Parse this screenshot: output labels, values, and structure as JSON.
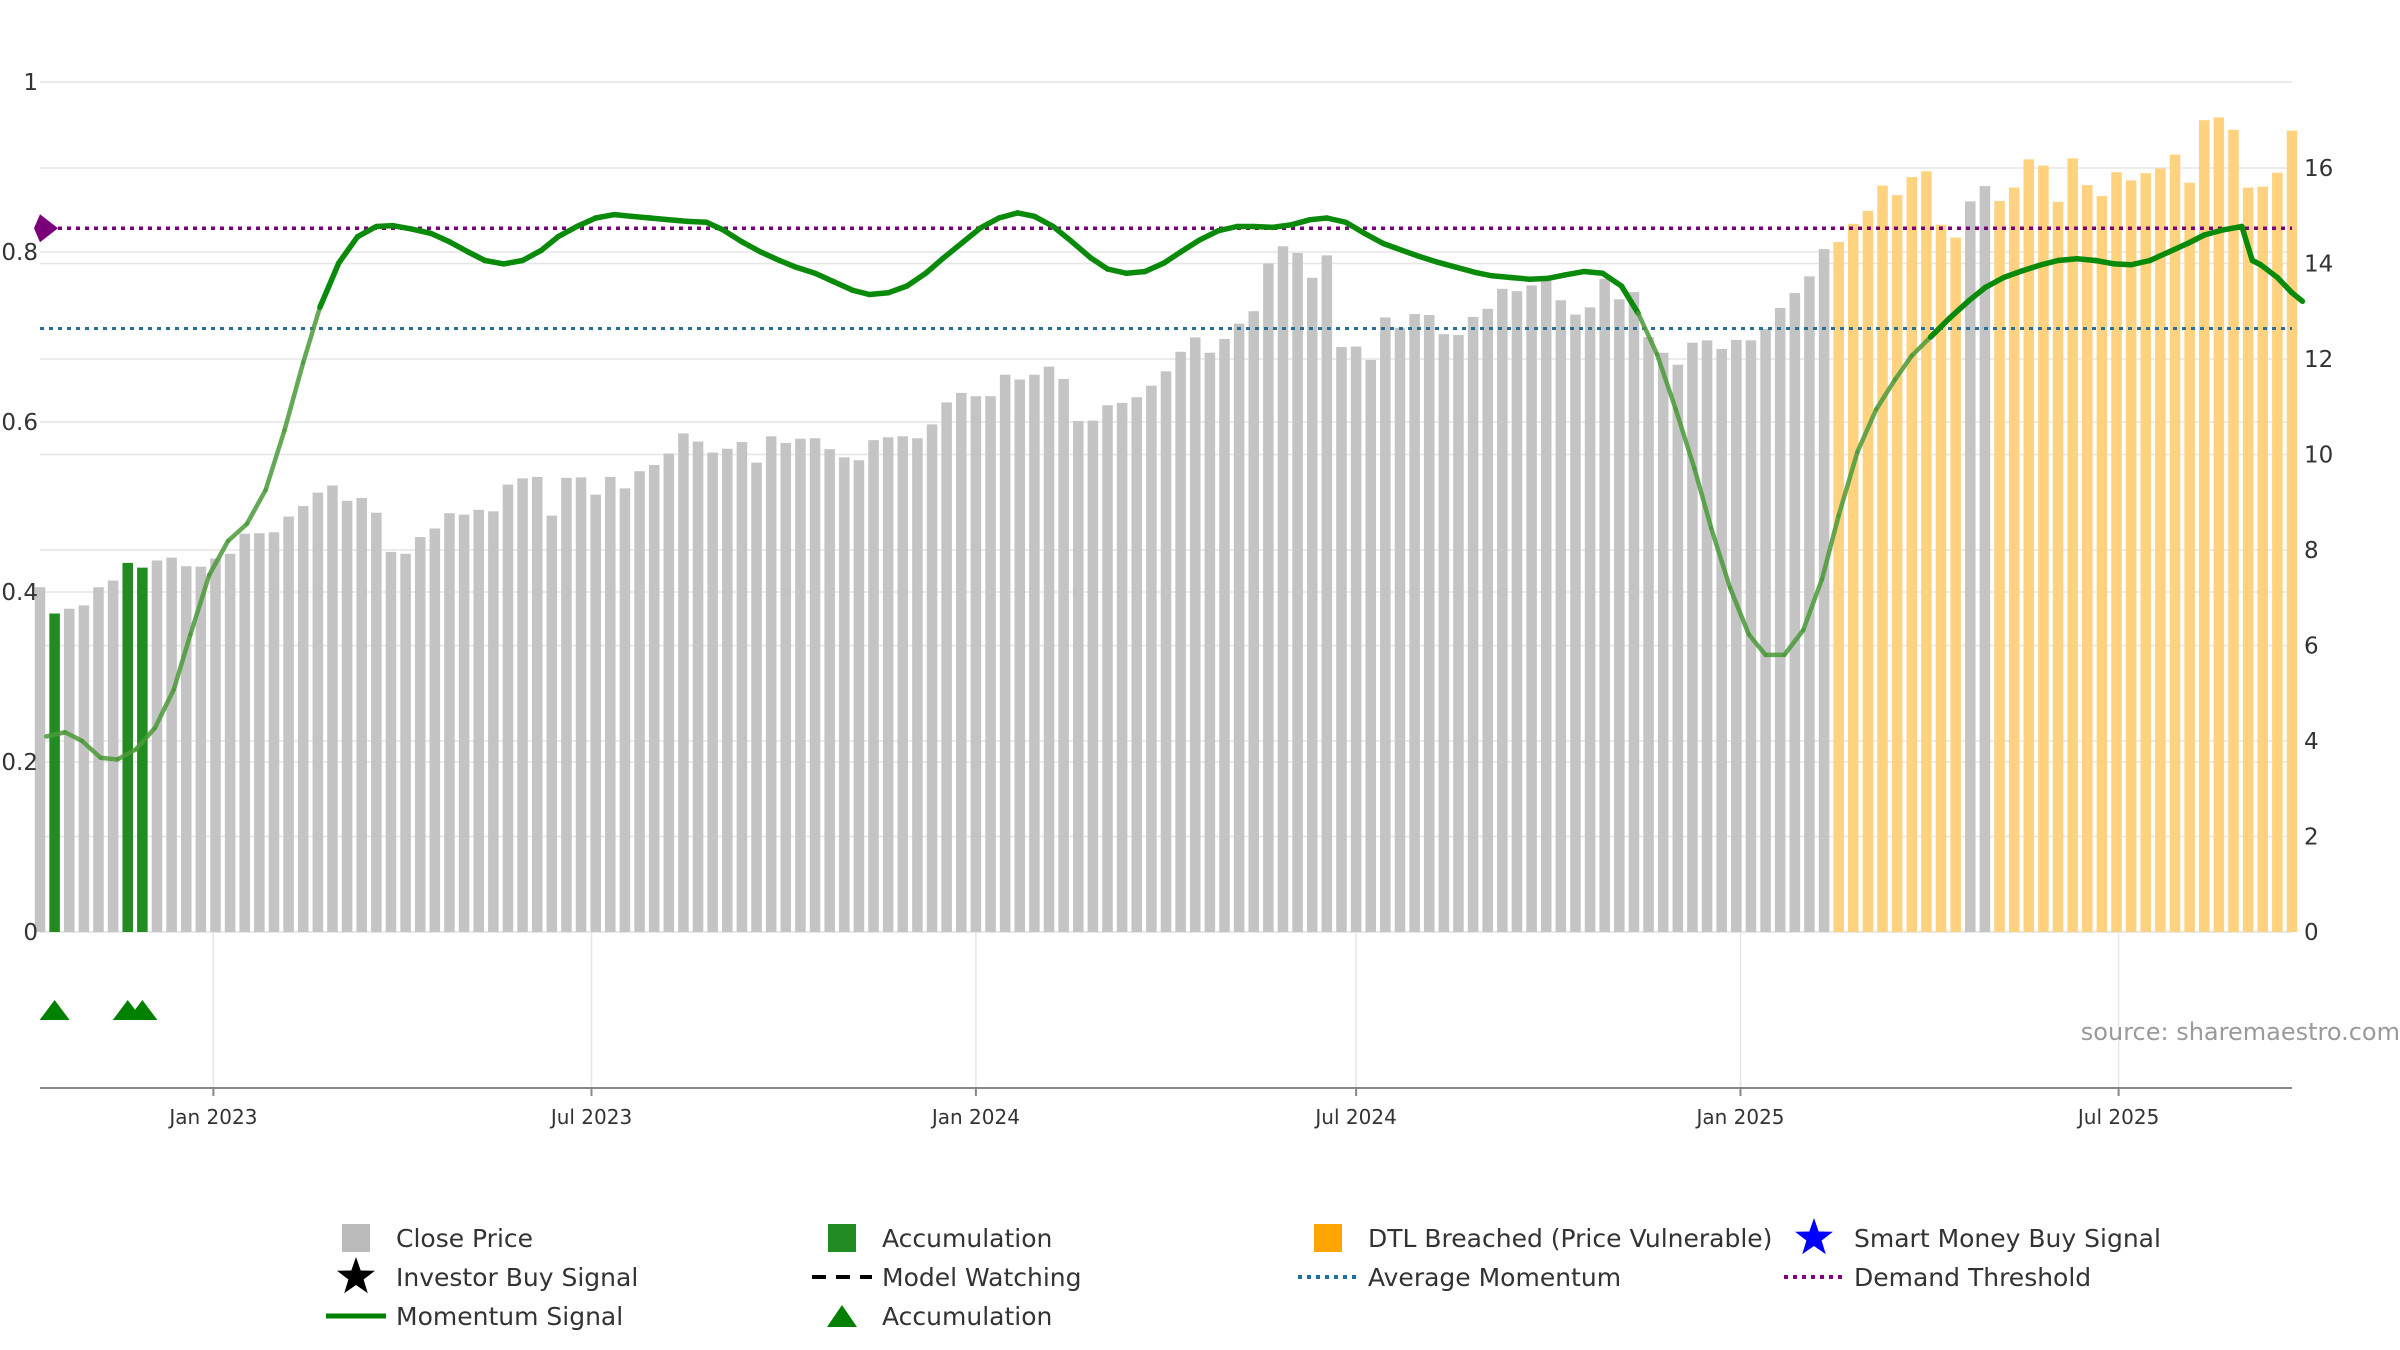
{
  "chart_data": {
    "type": "bar",
    "source_label": "source: sharemaestro.com",
    "left_axis": {
      "ylim": [
        0,
        1
      ],
      "ticks": [
        "0",
        "0.2",
        "0.4",
        "0.6",
        "0.8",
        "1"
      ]
    },
    "right_axis": {
      "ylim": [
        0,
        17.8
      ],
      "ticks": [
        "0",
        "2",
        "4",
        "6",
        "8",
        "10",
        "12",
        "14",
        "16"
      ]
    },
    "x_axis": {
      "start": "2022-10-10",
      "end": "2025-09-22",
      "ticks": [
        {
          "label": "Jan 2023",
          "date": "2023-01-01"
        },
        {
          "label": "Jul 2023",
          "date": "2023-07-01"
        },
        {
          "label": "Jan 2024",
          "date": "2024-01-01"
        },
        {
          "label": "Jul 2024",
          "date": "2024-07-01"
        },
        {
          "label": "Jan 2025",
          "date": "2025-01-01"
        },
        {
          "label": "Jul 2025",
          "date": "2025-07-01"
        }
      ]
    },
    "price_series": {
      "name": "Close Price",
      "start": "2022-10-10",
      "interval_days": 7,
      "values": [
        7.22,
        6.67,
        6.77,
        6.84,
        7.22,
        7.36,
        7.73,
        7.63,
        7.78,
        7.84,
        7.66,
        7.65,
        7.82,
        7.92,
        8.34,
        8.35,
        8.37,
        8.7,
        8.92,
        9.2,
        9.35,
        9.03,
        9.09,
        8.78,
        7.96,
        7.92,
        8.27,
        8.45,
        8.77,
        8.74,
        8.84,
        8.81,
        9.37,
        9.5,
        9.53,
        8.72,
        9.51,
        9.52,
        9.16,
        9.53,
        9.29,
        9.65,
        9.78,
        10.02,
        10.44,
        10.27,
        10.04,
        10.12,
        10.26,
        9.83,
        10.38,
        10.24,
        10.33,
        10.34,
        10.11,
        9.94,
        9.88,
        10.3,
        10.36,
        10.38,
        10.34,
        10.63,
        11.09,
        11.29,
        11.22,
        11.22,
        11.67,
        11.57,
        11.67,
        11.84,
        11.58,
        10.7,
        10.71,
        11.03,
        11.08,
        11.2,
        11.44,
        11.74,
        12.15,
        12.45,
        12.13,
        12.42,
        12.74,
        13.0,
        14.0,
        14.36,
        14.22,
        13.7,
        14.17,
        12.25,
        12.26,
        11.98,
        12.87,
        12.65,
        12.94,
        12.92,
        12.52,
        12.5,
        12.88,
        13.05,
        13.47,
        13.42,
        13.54,
        13.71,
        13.23,
        12.93,
        13.08,
        13.68,
        13.25,
        13.4,
        12.46,
        12.13,
        11.88,
        12.34,
        12.39,
        12.21,
        12.4,
        12.39,
        12.63,
        13.07,
        13.38,
        13.73,
        14.3,
        14.45,
        14.83,
        15.1,
        15.63,
        15.43,
        15.81,
        15.93,
        14.81,
        14.54,
        15.3,
        15.62,
        15.31,
        15.59,
        16.18,
        16.05,
        15.29,
        16.2,
        15.64,
        15.41,
        15.91,
        15.74,
        15.89,
        15.99,
        16.28,
        15.69,
        17.0,
        17.06,
        16.8,
        15.59,
        15.61,
        15.9,
        16.78
      ]
    },
    "accumulation_bars": [
      "2022-10-17",
      "2022-11-21",
      "2022-11-28"
    ],
    "accumulation_markers": [
      "2022-10-17",
      "2022-11-21",
      "2022-11-28"
    ],
    "dtl_breached": [
      {
        "start": "2025-02-17",
        "end": "2025-04-14"
      },
      {
        "start": "2025-05-05",
        "end": "2025-09-22"
      }
    ],
    "momentum_series": {
      "name": "Momentum Signal",
      "points": [
        [
          "2022-10-13",
          0.23
        ],
        [
          "2022-10-22",
          0.235
        ],
        [
          "2022-10-30",
          0.225
        ],
        [
          "2022-11-08",
          0.205
        ],
        [
          "2022-11-16",
          0.203
        ],
        [
          "2022-11-25",
          0.215
        ],
        [
          "2022-12-04",
          0.24
        ],
        [
          "2022-12-13",
          0.285
        ],
        [
          "2022-12-21",
          0.35
        ],
        [
          "2022-12-30",
          0.42
        ],
        [
          "2023-01-08",
          0.46
        ],
        [
          "2023-01-17",
          0.48
        ],
        [
          "2023-01-26",
          0.52
        ],
        [
          "2023-02-04",
          0.59
        ],
        [
          "2023-02-13",
          0.67
        ],
        [
          "2023-02-21",
          0.735
        ],
        [
          "2023-03-02",
          0.787
        ],
        [
          "2023-03-11",
          0.818
        ],
        [
          "2023-03-20",
          0.83
        ],
        [
          "2023-03-28",
          0.831
        ],
        [
          "2023-04-06",
          0.827
        ],
        [
          "2023-04-15",
          0.822
        ],
        [
          "2023-04-24",
          0.812
        ],
        [
          "2023-05-03",
          0.8
        ],
        [
          "2023-05-11",
          0.79
        ],
        [
          "2023-05-20",
          0.786
        ],
        [
          "2023-05-29",
          0.79
        ],
        [
          "2023-06-07",
          0.802
        ],
        [
          "2023-06-15",
          0.818
        ],
        [
          "2023-06-24",
          0.83
        ],
        [
          "2023-07-03",
          0.84
        ],
        [
          "2023-07-12",
          0.844
        ],
        [
          "2023-07-20",
          0.842
        ],
        [
          "2023-07-29",
          0.84
        ],
        [
          "2023-08-07",
          0.838
        ],
        [
          "2023-08-16",
          0.836
        ],
        [
          "2023-08-25",
          0.835
        ],
        [
          "2023-09-02",
          0.826
        ],
        [
          "2023-09-11",
          0.812
        ],
        [
          "2023-09-20",
          0.8
        ],
        [
          "2023-09-29",
          0.79
        ],
        [
          "2023-10-07",
          0.782
        ],
        [
          "2023-10-16",
          0.775
        ],
        [
          "2023-10-25",
          0.765
        ],
        [
          "2023-11-03",
          0.755
        ],
        [
          "2023-11-11",
          0.75
        ],
        [
          "2023-11-20",
          0.752
        ],
        [
          "2023-11-29",
          0.76
        ],
        [
          "2023-12-08",
          0.775
        ],
        [
          "2023-12-16",
          0.792
        ],
        [
          "2023-12-25",
          0.81
        ],
        [
          "2024-01-03",
          0.828
        ],
        [
          "2024-01-12",
          0.84
        ],
        [
          "2024-01-21",
          0.846
        ],
        [
          "2024-01-29",
          0.842
        ],
        [
          "2024-02-07",
          0.83
        ],
        [
          "2024-02-16",
          0.812
        ],
        [
          "2024-02-25",
          0.793
        ],
        [
          "2024-03-04",
          0.78
        ],
        [
          "2024-03-13",
          0.775
        ],
        [
          "2024-03-22",
          0.777
        ],
        [
          "2024-03-31",
          0.787
        ],
        [
          "2024-04-08",
          0.8
        ],
        [
          "2024-04-17",
          0.814
        ],
        [
          "2024-04-26",
          0.825
        ],
        [
          "2024-05-05",
          0.83
        ],
        [
          "2024-05-13",
          0.83
        ],
        [
          "2024-05-22",
          0.829
        ],
        [
          "2024-05-31",
          0.832
        ],
        [
          "2024-06-09",
          0.838
        ],
        [
          "2024-06-17",
          0.84
        ],
        [
          "2024-06-26",
          0.835
        ],
        [
          "2024-07-05",
          0.822
        ],
        [
          "2024-07-14",
          0.81
        ],
        [
          "2024-07-23",
          0.802
        ],
        [
          "2024-07-31",
          0.795
        ],
        [
          "2024-08-09",
          0.788
        ],
        [
          "2024-08-18",
          0.782
        ],
        [
          "2024-08-27",
          0.776
        ],
        [
          "2024-09-04",
          0.772
        ],
        [
          "2024-09-13",
          0.77
        ],
        [
          "2024-09-22",
          0.768
        ],
        [
          "2024-10-01",
          0.769
        ],
        [
          "2024-10-09",
          0.773
        ],
        [
          "2024-10-18",
          0.777
        ],
        [
          "2024-10-27",
          0.775
        ],
        [
          "2024-11-05",
          0.76
        ],
        [
          "2024-11-13",
          0.728
        ],
        [
          "2024-11-22",
          0.68
        ],
        [
          "2024-12-01",
          0.615
        ],
        [
          "2024-12-10",
          0.545
        ],
        [
          "2024-12-18",
          0.475
        ],
        [
          "2024-12-27",
          0.405
        ],
        [
          "2025-01-05",
          0.35
        ],
        [
          "2025-01-13",
          0.326
        ],
        [
          "2025-01-22",
          0.326
        ],
        [
          "2025-01-31",
          0.355
        ],
        [
          "2025-02-09",
          0.415
        ],
        [
          "2025-02-17",
          0.49
        ],
        [
          "2025-02-26",
          0.565
        ],
        [
          "2025-03-07",
          0.615
        ],
        [
          "2025-03-16",
          0.65
        ],
        [
          "2025-03-24",
          0.678
        ],
        [
          "2025-04-02",
          0.7
        ],
        [
          "2025-04-11",
          0.722
        ],
        [
          "2025-04-20",
          0.742
        ],
        [
          "2025-04-28",
          0.758
        ],
        [
          "2025-05-07",
          0.77
        ],
        [
          "2025-05-16",
          0.778
        ],
        [
          "2025-05-25",
          0.785
        ],
        [
          "2025-06-02",
          0.79
        ],
        [
          "2025-06-11",
          0.792
        ],
        [
          "2025-06-20",
          0.79
        ],
        [
          "2025-06-29",
          0.786
        ],
        [
          "2025-07-07",
          0.785
        ],
        [
          "2025-07-16",
          0.79
        ],
        [
          "2025-07-25",
          0.8
        ],
        [
          "2025-08-03",
          0.81
        ],
        [
          "2025-08-11",
          0.82
        ],
        [
          "2025-08-20",
          0.826
        ],
        [
          "2025-08-29",
          0.83
        ],
        [
          "2025-09-03",
          0.79
        ],
        [
          "2025-09-07",
          0.785
        ],
        [
          "2025-09-15",
          0.77
        ],
        [
          "2025-09-22",
          0.752
        ],
        [
          "2025-09-27",
          0.742
        ]
      ]
    },
    "average_momentum": 0.71,
    "demand_threshold": 0.828,
    "legend": [
      {
        "label": "Close Price",
        "icon": "square",
        "color": "#bbbbbb"
      },
      {
        "label": "Accumulation",
        "icon": "square",
        "color": "#228b22"
      },
      {
        "label": "DTL Breached (Price Vulnerable)",
        "icon": "square",
        "color": "#ffa500"
      },
      {
        "label": "Smart Money Buy Signal",
        "icon": "star",
        "color": "#0000ff"
      },
      {
        "label": "Investor Buy Signal",
        "icon": "star",
        "color": "#000000"
      },
      {
        "label": "Model Watching",
        "icon": "dash",
        "color": "#000000"
      },
      {
        "label": "Average Momentum",
        "icon": "dotted",
        "color": "#1f6f9f"
      },
      {
        "label": "Demand Threshold",
        "icon": "dotted",
        "color": "#800080"
      },
      {
        "label": "Momentum Signal",
        "icon": "line",
        "color": "#008000"
      },
      {
        "label": "Accumulation",
        "icon": "triangle",
        "color": "#008000"
      }
    ],
    "colors": {
      "price": "#c4c4c4",
      "accumulation": "#228b22",
      "dtl": "#ffd27f",
      "momentum": "#0a8a0a",
      "momentum_dim": "#4a9a3a",
      "average": "#2a6f97",
      "threshold": "#7a007a",
      "grid": "#e6e6e6",
      "axis": "#888888"
    }
  }
}
